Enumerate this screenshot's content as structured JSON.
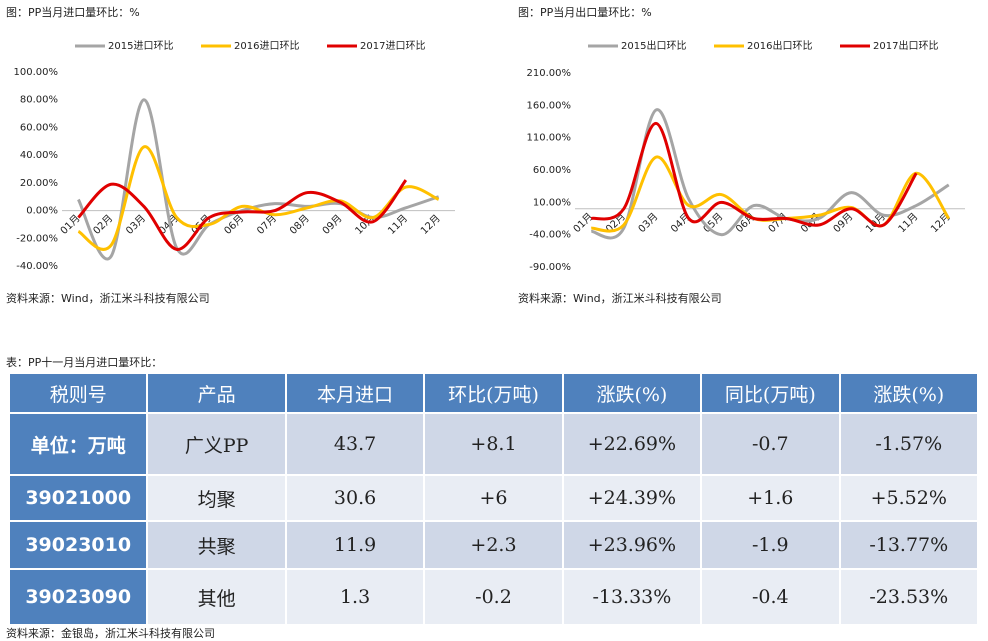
{
  "chart_data": [
    {
      "type": "line",
      "title": "图：PP当月进口量环比：%",
      "categories": [
        "01月",
        "02月",
        "03月",
        "04月",
        "05月",
        "06月",
        "07月",
        "08月",
        "09月",
        "10月",
        "11月",
        "12月"
      ],
      "series": [
        {
          "name": "2015进口环比",
          "color": "#a5a5a5",
          "values": [
            8,
            -33,
            80,
            -27,
            -10,
            0,
            5,
            3,
            5,
            -5,
            2,
            10
          ]
        },
        {
          "name": "2016进口环比",
          "color": "#ffc000",
          "values": [
            -15,
            -25,
            46,
            -5,
            -10,
            3,
            -3,
            2,
            7,
            -5,
            17,
            8
          ]
        },
        {
          "name": "2017进口环比",
          "color": "#e00000",
          "values": [
            -5,
            19,
            3,
            -28,
            -5,
            -1,
            0,
            13,
            6,
            -8,
            22,
            null
          ]
        }
      ],
      "ylim": [
        -40,
        100
      ],
      "yticks": [
        {
          "value": -40,
          "label": "-40.00%"
        },
        {
          "value": -20,
          "label": "-20.00%"
        },
        {
          "value": 0,
          "label": "0.00%"
        },
        {
          "value": 20,
          "label": "20.00%"
        },
        {
          "value": 40,
          "label": "40.00%"
        },
        {
          "value": 60,
          "label": "60.00%"
        },
        {
          "value": 80,
          "label": "80.00%"
        },
        {
          "value": 100,
          "label": "100.00%"
        }
      ],
      "grid": false,
      "legend": "top",
      "source": "资料来源：Wind，浙江米斗科技有限公司"
    },
    {
      "type": "line",
      "title": "图：PP当月出口量环比：%",
      "categories": [
        "01月",
        "02月",
        "03月",
        "04月",
        "05月",
        "06月",
        "07月",
        "08月",
        "09月",
        "10月",
        "11月",
        "12月"
      ],
      "series": [
        {
          "name": "2015出口环比",
          "color": "#a5a5a5",
          "values": [
            -35,
            -30,
            153,
            15,
            -40,
            5,
            -15,
            -15,
            25,
            -10,
            5,
            37
          ]
        },
        {
          "name": "2016出口环比",
          "color": "#ffc000",
          "values": [
            -30,
            -25,
            80,
            5,
            22,
            -15,
            -15,
            -10,
            2,
            -25,
            55,
            -15
          ]
        },
        {
          "name": "2017出口环比",
          "color": "#e00000",
          "values": [
            -15,
            0,
            132,
            -15,
            10,
            -15,
            -15,
            -25,
            0,
            -25,
            55,
            null
          ]
        }
      ],
      "ylim": [
        -90,
        210
      ],
      "yticks": [
        {
          "value": -90,
          "label": "-90.00%"
        },
        {
          "value": -40,
          "label": "-40.00%"
        },
        {
          "value": 10,
          "label": "10.00%"
        },
        {
          "value": 60,
          "label": "60.00%"
        },
        {
          "value": 110,
          "label": "110.00%"
        },
        {
          "value": 160,
          "label": "160.00%"
        },
        {
          "value": 210,
          "label": "210.00%"
        }
      ],
      "grid": false,
      "legend": "top",
      "source": "资料来源：Wind，浙江米斗科技有限公司"
    }
  ],
  "table": {
    "caption": "表：PP十一月当月进口量环比：",
    "header": [
      "税则号",
      "产品",
      "本月进口",
      "环比(万吨)",
      "涨跌(%)",
      "同比(万吨)",
      "涨跌(%)"
    ],
    "rows": [
      [
        "单位：万吨",
        "广义PP",
        "43.7",
        "+8.1",
        "+22.69%",
        "-0.7",
        "-1.57%"
      ],
      [
        "39021000",
        "均聚",
        "30.6",
        "+6",
        "+24.39%",
        "+1.6",
        "+5.52%"
      ],
      [
        "39023010",
        "共聚",
        "11.9",
        "+2.3",
        "+23.96%",
        "-1.9",
        "-13.77%"
      ],
      [
        "39023090",
        "其他",
        "1.3",
        "-0.2",
        "-13.33%",
        "-0.4",
        "-23.53%"
      ]
    ],
    "source": "资料来源：金银岛，浙江米斗科技有限公司"
  }
}
